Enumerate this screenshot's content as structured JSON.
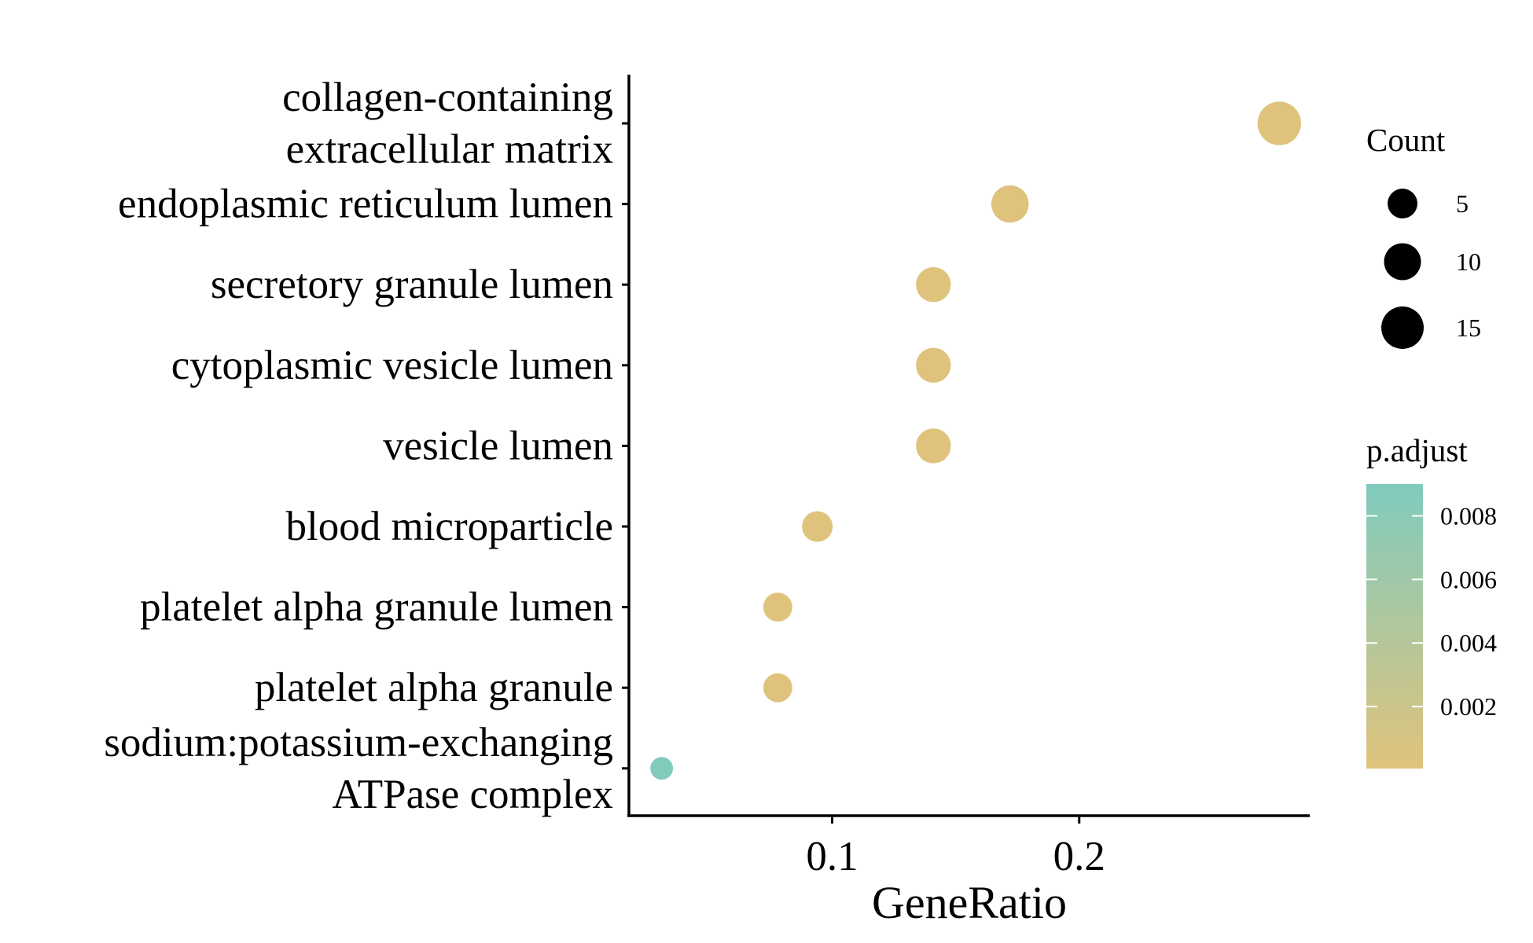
{
  "chart_data": {
    "type": "scatter",
    "xlabel": "GeneRatio",
    "ylabel": "",
    "title": "",
    "xlim": [
      0.01,
      0.29
    ],
    "x_ticks": [
      "0.1",
      "0.2"
    ],
    "x_tick_values": [
      0.1,
      0.2
    ],
    "categories": [
      "collagen-containing\nextracellular matrix",
      "endoplasmic reticulum lumen",
      "secretory granule lumen",
      "cytoplasmic vesicle lumen",
      "vesicle lumen",
      "blood microparticle",
      "platelet alpha granule lumen",
      "platelet alpha granule",
      "sodium:potassium-exchanging\nATPase complex"
    ],
    "points": [
      {
        "term": "collagen-containing extracellular matrix",
        "gene_ratio": 0.281,
        "count": 17,
        "p_adjust": 0.0001
      },
      {
        "term": "endoplasmic reticulum lumen",
        "gene_ratio": 0.172,
        "count": 11,
        "p_adjust": 0.0001
      },
      {
        "term": "secretory granule lumen",
        "gene_ratio": 0.141,
        "count": 9,
        "p_adjust": 0.0001
      },
      {
        "term": "cytoplasmic vesicle lumen",
        "gene_ratio": 0.141,
        "count": 9,
        "p_adjust": 0.0001
      },
      {
        "term": "vesicle lumen",
        "gene_ratio": 0.141,
        "count": 9,
        "p_adjust": 0.0001
      },
      {
        "term": "blood microparticle",
        "gene_ratio": 0.094,
        "count": 6,
        "p_adjust": 0.0001
      },
      {
        "term": "platelet alpha granule lumen",
        "gene_ratio": 0.078,
        "count": 5,
        "p_adjust": 0.0001
      },
      {
        "term": "platelet alpha granule",
        "gene_ratio": 0.078,
        "count": 5,
        "p_adjust": 0.0001
      },
      {
        "term": "sodium:potassium-exchanging ATPase complex",
        "gene_ratio": 0.031,
        "count": 2,
        "p_adjust": 0.0089
      }
    ],
    "legend_size": {
      "title": "Count",
      "breaks": [
        5,
        10,
        15
      ],
      "labels": [
        "5",
        "10",
        "15"
      ]
    },
    "legend_color": {
      "title": "p.adjust",
      "low_color": "#E0C37C",
      "high_color": "#80CBBE",
      "range": [
        5e-05,
        0.009
      ],
      "breaks": [
        0.008,
        0.006,
        0.004,
        0.002
      ],
      "labels": [
        "0.008",
        "0.006",
        "0.004",
        "0.002"
      ]
    },
    "legend_position": "right",
    "grid": false
  }
}
